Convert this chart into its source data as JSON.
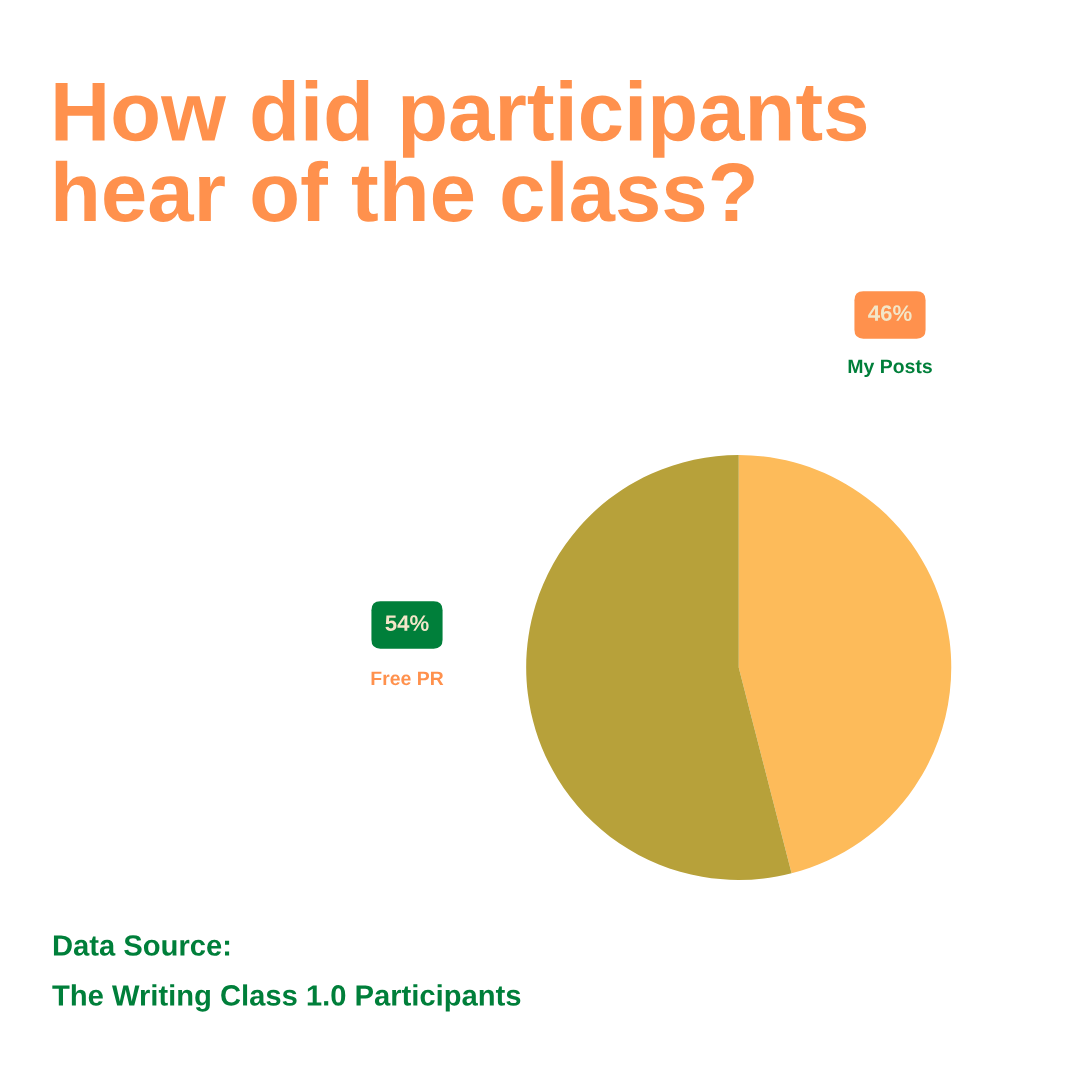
{
  "chart_data": {
    "type": "pie",
    "title": "How did participants\nhear of the class?",
    "categories": [
      "My Posts",
      "Free PR"
    ],
    "values": [
      46,
      54
    ],
    "colors": [
      "#fdbb5a",
      "#b7a13a"
    ],
    "value_labels": [
      "46%",
      "54%"
    ],
    "legend": false,
    "annotations": [
      "Data Source:",
      "The Writing Class 1.0 Participants"
    ]
  }
}
